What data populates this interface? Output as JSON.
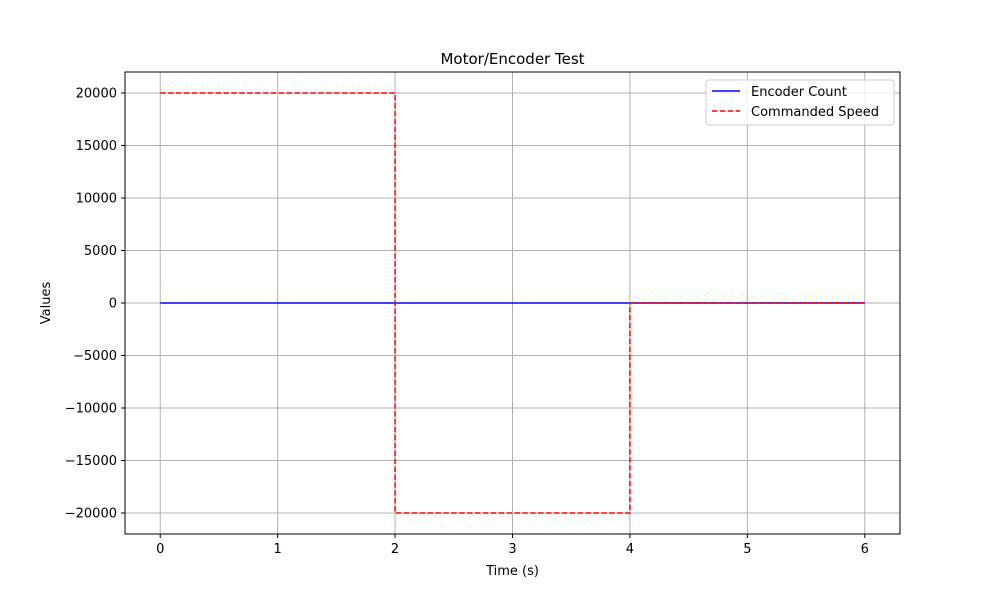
{
  "chart_data": {
    "type": "line",
    "title": "Motor/Encoder Test",
    "xlabel": "Time (s)",
    "ylabel": "Values",
    "xlim": [
      -0.3,
      6.3
    ],
    "ylim": [
      -22000,
      22000
    ],
    "xticks": [
      0,
      1,
      2,
      3,
      4,
      5,
      6
    ],
    "yticks": [
      20000,
      15000,
      10000,
      5000,
      0,
      -5000,
      -10000,
      -15000,
      -20000
    ],
    "xtick_labels": [
      "0",
      "1",
      "2",
      "3",
      "4",
      "5",
      "6"
    ],
    "ytick_labels": [
      "20000",
      "15000",
      "10000",
      "5000",
      "0",
      "−5000",
      "−10000",
      "−15000",
      "−20000"
    ],
    "grid": true,
    "legend_position": "top-right",
    "series": [
      {
        "name": "Encoder Count",
        "color": "#0000ff",
        "style": "solid",
        "x": [
          0,
          6
        ],
        "y": [
          0,
          0
        ]
      },
      {
        "name": "Commanded Speed",
        "color": "#ff0000",
        "style": "dashed",
        "x": [
          0,
          2,
          2,
          4,
          4,
          6
        ],
        "y": [
          20000,
          20000,
          -20000,
          -20000,
          0,
          0
        ]
      }
    ]
  }
}
